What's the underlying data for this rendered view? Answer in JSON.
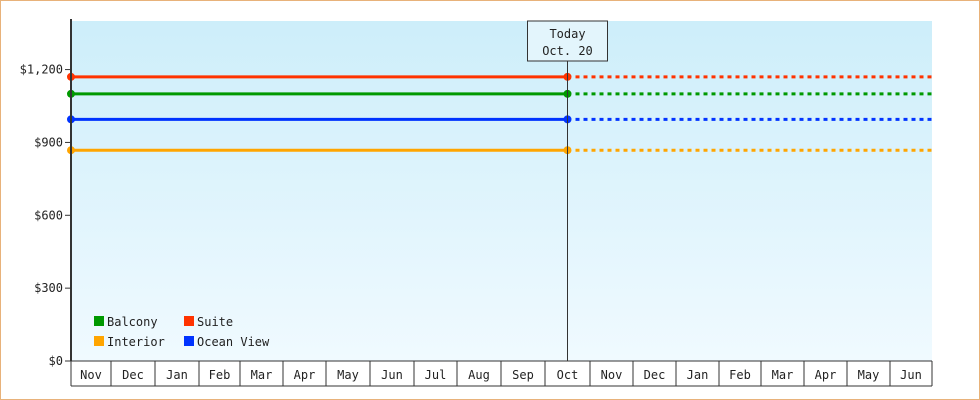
{
  "chart_data": {
    "type": "line",
    "x_months": [
      "Nov",
      "Dec",
      "Jan",
      "Feb",
      "Mar",
      "Apr",
      "May",
      "Jun",
      "Jul",
      "Aug",
      "Sep",
      "Oct",
      "Nov",
      "Dec",
      "Jan",
      "Feb",
      "Mar",
      "Apr",
      "May",
      "Jun"
    ],
    "y_ticks": [
      {
        "value": 0,
        "label": "$0"
      },
      {
        "value": 300,
        "label": "$300"
      },
      {
        "value": 600,
        "label": "$600"
      },
      {
        "value": 900,
        "label": "$900"
      },
      {
        "value": 1200,
        "label": "$1,200"
      }
    ],
    "ylim": [
      0,
      1400
    ],
    "today": {
      "line1": "Today",
      "line2": "Oct. 20",
      "month_index": 11
    },
    "series": [
      {
        "name": "Suite",
        "color": "#ff3300",
        "value": 1170
      },
      {
        "name": "Balcony",
        "color": "#009900",
        "value": 1100
      },
      {
        "name": "Ocean View",
        "color": "#0033ff",
        "value": 995
      },
      {
        "name": "Interior",
        "color": "#ffa500",
        "value": 868
      }
    ],
    "legend": [
      {
        "name": "Balcony",
        "color": "#009900"
      },
      {
        "name": "Suite",
        "color": "#ff3300"
      },
      {
        "name": "Interior",
        "color": "#ffa500"
      },
      {
        "name": "Ocean View",
        "color": "#0033ff"
      }
    ],
    "colors": {
      "plot_top": "#cdeefa",
      "plot_bottom": "#f0faff",
      "frame_border": "#e8b27a"
    }
  }
}
